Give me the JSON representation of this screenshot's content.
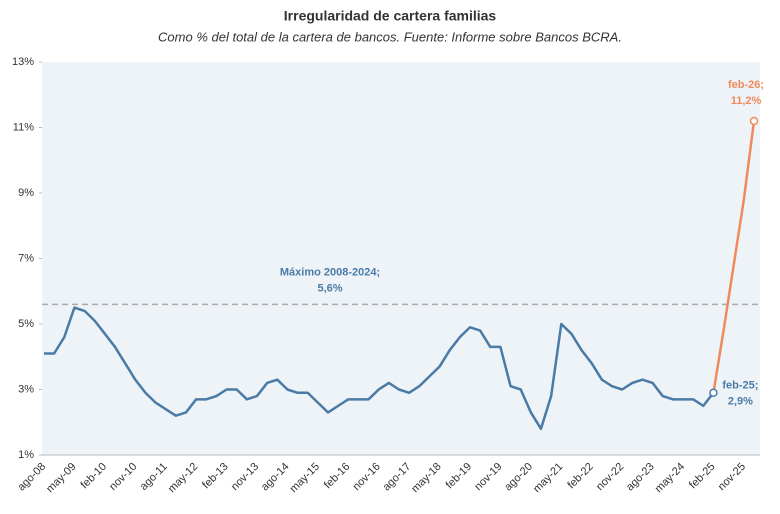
{
  "chart_data": {
    "type": "line",
    "title": "Irregularidad  de cartera familias",
    "subtitle": "Como % del total de la cartera de bancos. Fuente: Informe sobre Bancos BCRA.",
    "categories": [
      "ago-08",
      null,
      null,
      "may-09",
      null,
      null,
      "feb-10",
      null,
      null,
      "nov-10",
      null,
      null,
      "ago-11",
      null,
      null,
      "may-12",
      null,
      null,
      "feb-13",
      null,
      null,
      "nov-13",
      null,
      null,
      "ago-14",
      null,
      null,
      "may-15",
      null,
      null,
      "feb-16",
      null,
      null,
      "nov-16",
      null,
      null,
      "ago-17",
      null,
      null,
      "may-18",
      null,
      null,
      "feb-19",
      null,
      null,
      "nov-19",
      null,
      null,
      "ago-20",
      null,
      null,
      "may-21",
      null,
      null,
      "feb-22",
      null,
      null,
      "nov-22",
      null,
      null,
      "ago-23",
      null,
      null,
      "may-24",
      null,
      null,
      "feb-25",
      null,
      null,
      "nov-25",
      null
    ],
    "series": [
      {
        "color": "#4a7ba6",
        "values": [
          4.1,
          4.1,
          4.6,
          5.5,
          5.4,
          5.1,
          4.7,
          4.3,
          3.8,
          3.3,
          2.9,
          2.6,
          2.4,
          2.2,
          2.3,
          2.7,
          2.7,
          2.8,
          3.0,
          3.0,
          2.7,
          2.8,
          3.2,
          3.3,
          3.0,
          2.9,
          2.9,
          2.6,
          2.3,
          2.5,
          2.7,
          2.7,
          2.7,
          3.0,
          3.2,
          3.0,
          2.9,
          3.1,
          3.4,
          3.7,
          4.2,
          4.6,
          4.9,
          4.8,
          4.3,
          4.3,
          3.1,
          3.0,
          2.3,
          1.8,
          2.8,
          5.0,
          4.7,
          4.2,
          3.8,
          3.3,
          3.1,
          3.0,
          3.2,
          3.3,
          3.2,
          2.8,
          2.7,
          2.7,
          2.7,
          2.5,
          2.9,
          null,
          null,
          null,
          null
        ]
      },
      {
        "color": "#f08a5d",
        "values": [
          null,
          null,
          null,
          null,
          null,
          null,
          null,
          null,
          null,
          null,
          null,
          null,
          null,
          null,
          null,
          null,
          null,
          null,
          null,
          null,
          null,
          null,
          null,
          null,
          null,
          null,
          null,
          null,
          null,
          null,
          null,
          null,
          null,
          null,
          null,
          null,
          null,
          null,
          null,
          null,
          null,
          null,
          null,
          null,
          null,
          null,
          null,
          null,
          null,
          null,
          null,
          null,
          null,
          null,
          null,
          null,
          null,
          null,
          null,
          null,
          null,
          null,
          null,
          null,
          null,
          null,
          2.9,
          4.8,
          6.8,
          8.8,
          11.2
        ]
      }
    ],
    "ylim": [
      1,
      13
    ],
    "yticks": [
      {
        "value": 1,
        "label": "1%"
      },
      {
        "value": 3,
        "label": "3%"
      },
      {
        "value": 5,
        "label": "5%"
      },
      {
        "value": 7,
        "label": "7%"
      },
      {
        "value": 9,
        "label": "9%"
      },
      {
        "value": 11,
        "label": "11%"
      },
      {
        "value": 13,
        "label": "13%"
      }
    ],
    "reference_line": {
      "value": 5.6,
      "color": "#aaaaaa"
    },
    "annotations": [
      {
        "lines": [
          "Máximo 2008-2024;",
          "5,6%"
        ]
      },
      {
        "lines": [
          "feb-25;",
          "2,9%"
        ]
      },
      {
        "lines": [
          "feb-26;",
          "11,2%"
        ]
      }
    ]
  }
}
